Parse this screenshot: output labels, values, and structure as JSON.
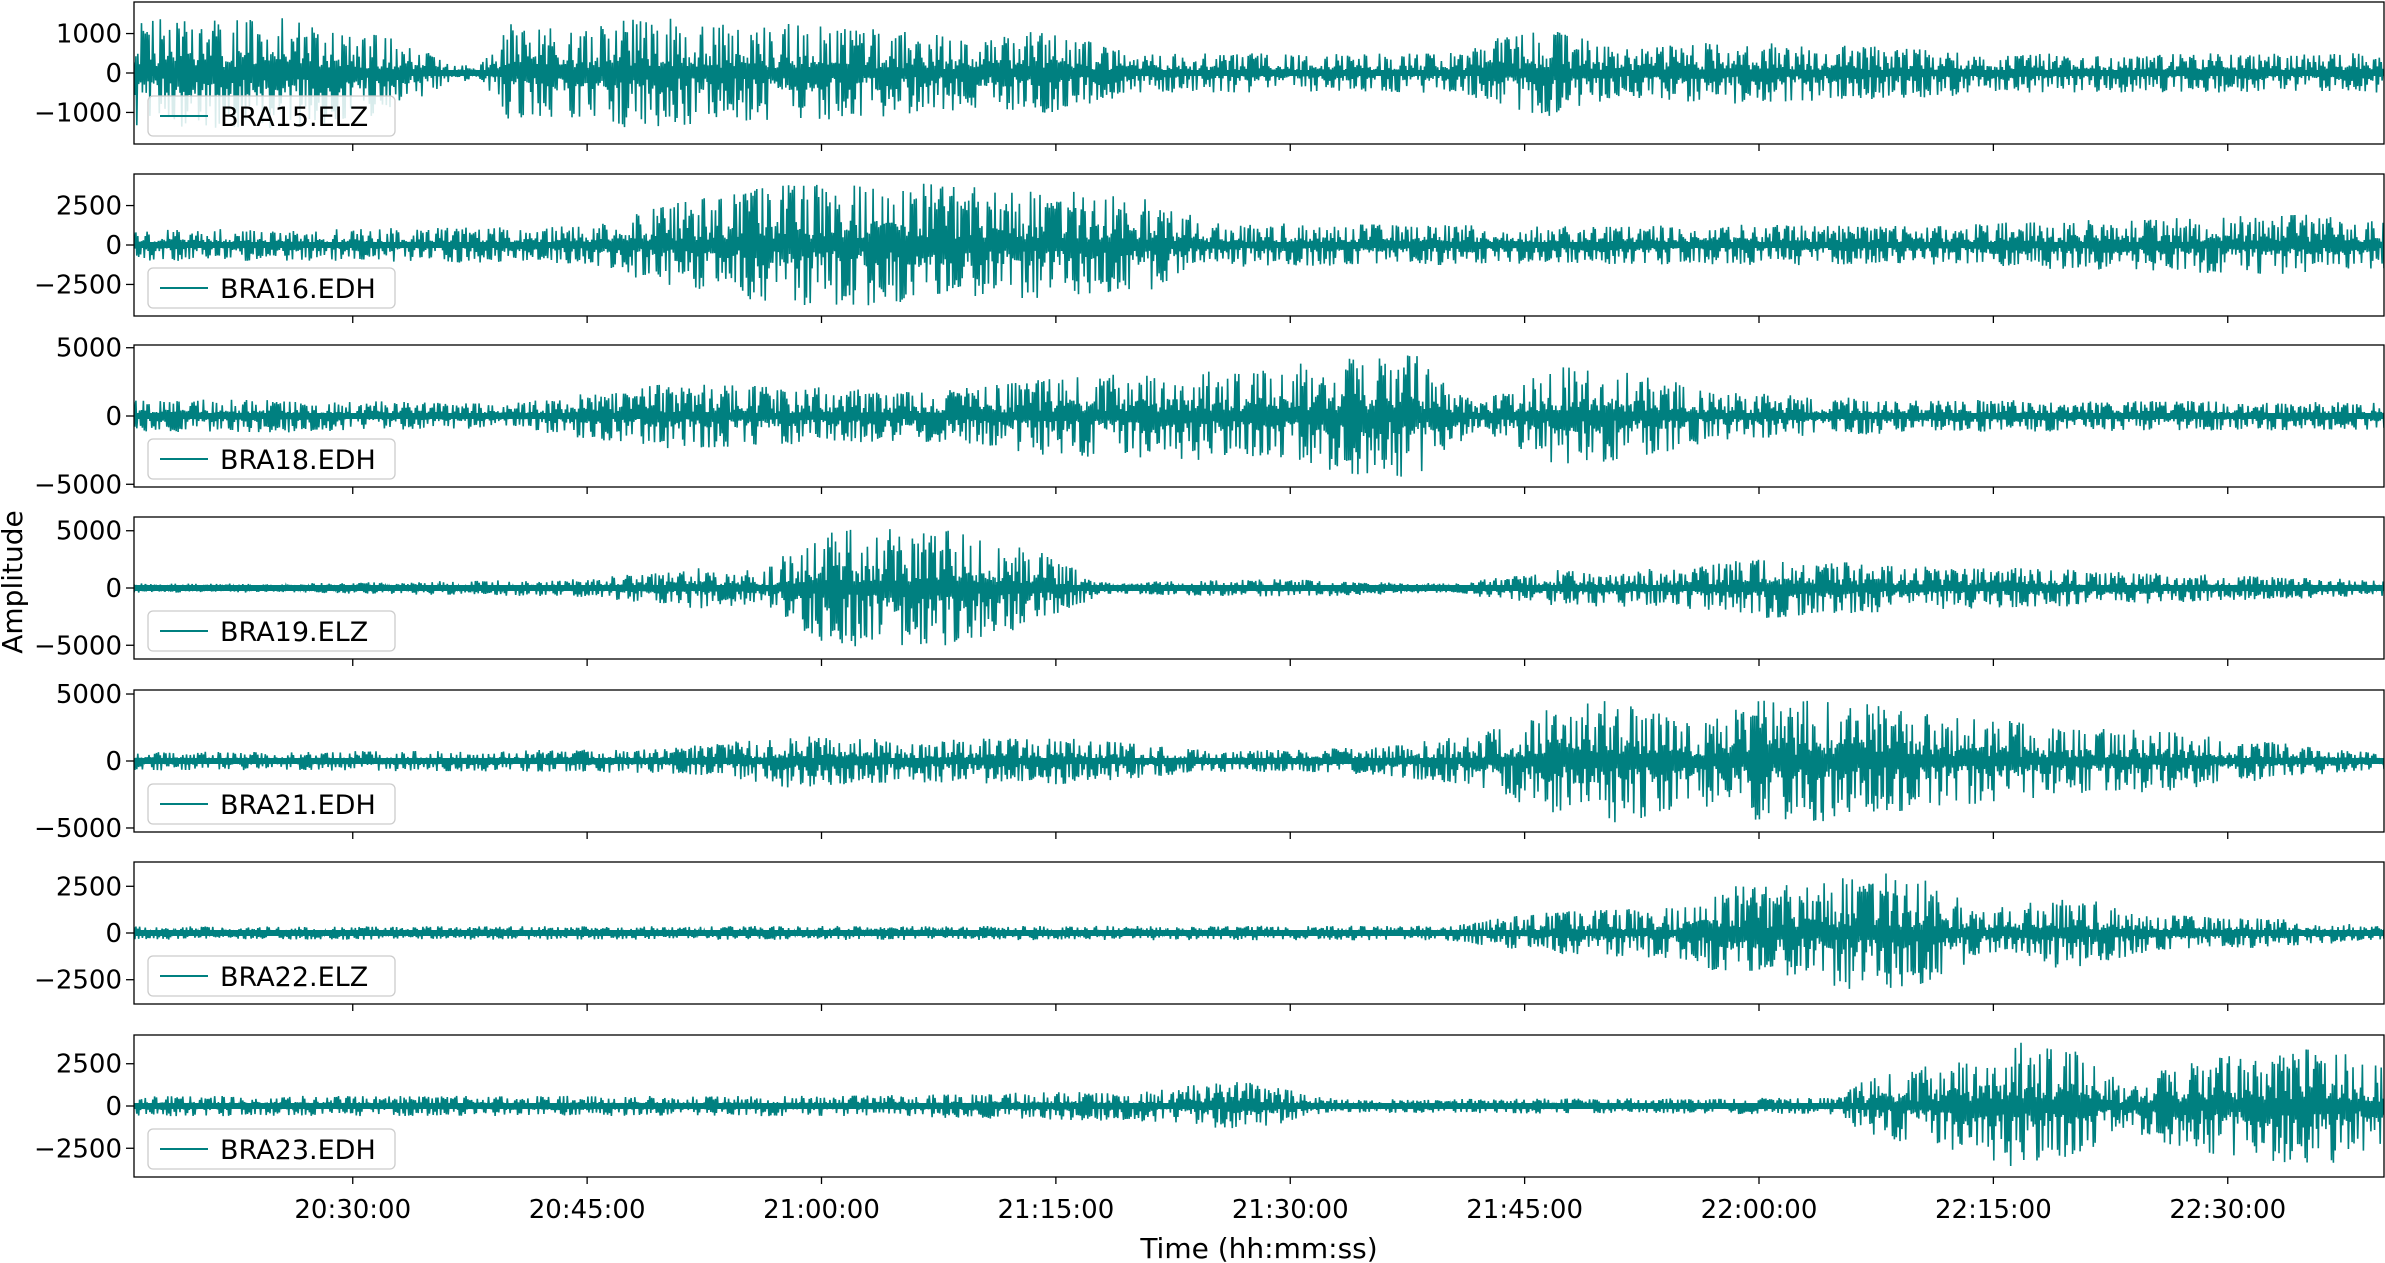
{
  "figure": {
    "ylabel": "Amplitude",
    "xlabel": "Time (hh:mm:ss)"
  },
  "colors": {
    "trace": "#008080",
    "axes": "#000000",
    "background": "#ffffff"
  },
  "chart_data": [
    {
      "type": "line",
      "legend": "BRA15.ELZ",
      "legend_position": "bottom-left",
      "ylim": [
        -1800,
        1800
      ],
      "yticks": [
        1000,
        0,
        -1000
      ],
      "ytick_labels": [
        "1000",
        "0",
        "−1000"
      ],
      "peak_amplitude": 1500,
      "envelope": [
        {
          "t": "20:26:00",
          "amp": 1400
        },
        {
          "t": "20:30:30",
          "amp": 1200
        },
        {
          "t": "20:38:00",
          "amp": 100
        },
        {
          "t": "20:40:00",
          "amp": 1300
        },
        {
          "t": "20:45:00",
          "amp": 1100
        },
        {
          "t": "20:48:00",
          "amp": 1500
        },
        {
          "t": "20:55:00",
          "amp": 1200
        },
        {
          "t": "20:58:00",
          "amp": 1300
        },
        {
          "t": "21:10:00",
          "amp": 900
        },
        {
          "t": "21:15:00",
          "amp": 1100
        },
        {
          "t": "21:20:00",
          "amp": 500
        },
        {
          "t": "21:40:00",
          "amp": 500
        },
        {
          "t": "21:46:00",
          "amp": 1200
        },
        {
          "t": "21:51:00",
          "amp": 600
        },
        {
          "t": "21:57:00",
          "amp": 800
        },
        {
          "t": "22:05:00",
          "amp": 700
        },
        {
          "t": "22:10:00",
          "amp": 650
        },
        {
          "t": "22:15:00",
          "amp": 500
        },
        {
          "t": "22:40:00",
          "amp": 500
        }
      ]
    },
    {
      "type": "line",
      "legend": "BRA16.EDH",
      "legend_position": "bottom-left",
      "ylim": [
        -4500,
        4500
      ],
      "yticks": [
        2500,
        0,
        -2500
      ],
      "ytick_labels": [
        "2500",
        "0",
        "−2500"
      ],
      "peak_amplitude": 4000,
      "envelope": [
        {
          "t": "20:26:00",
          "amp": 1000
        },
        {
          "t": "20:45:00",
          "amp": 1200
        },
        {
          "t": "20:50:00",
          "amp": 2600
        },
        {
          "t": "20:55:00",
          "amp": 3400
        },
        {
          "t": "20:57:00",
          "amp": 3800
        },
        {
          "t": "21:03:00",
          "amp": 3900
        },
        {
          "t": "21:07:00",
          "amp": 3900
        },
        {
          "t": "21:12:00",
          "amp": 3500
        },
        {
          "t": "21:20:00",
          "amp": 3300
        },
        {
          "t": "21:25:00",
          "amp": 1400
        },
        {
          "t": "21:50:00",
          "amp": 1200
        },
        {
          "t": "22:00:00",
          "amp": 1300
        },
        {
          "t": "22:10:00",
          "amp": 1200
        },
        {
          "t": "22:20:00",
          "amp": 1600
        },
        {
          "t": "22:30:00",
          "amp": 1800
        },
        {
          "t": "22:35:00",
          "amp": 2000
        },
        {
          "t": "22:40:00",
          "amp": 1500
        }
      ]
    },
    {
      "type": "line",
      "legend": "BRA18.EDH",
      "legend_position": "bottom-left",
      "ylim": [
        -5200,
        5200
      ],
      "yticks": [
        5000,
        0,
        -5000
      ],
      "ytick_labels": [
        "5000",
        "0",
        "−5000"
      ],
      "peak_amplitude": 4800,
      "envelope": [
        {
          "t": "20:26:00",
          "amp": 1200
        },
        {
          "t": "20:40:00",
          "amp": 900
        },
        {
          "t": "20:45:00",
          "amp": 1700
        },
        {
          "t": "20:50:00",
          "amp": 2400
        },
        {
          "t": "21:00:00",
          "amp": 2100
        },
        {
          "t": "21:08:00",
          "amp": 1900
        },
        {
          "t": "21:15:00",
          "amp": 3000
        },
        {
          "t": "21:22:00",
          "amp": 3200
        },
        {
          "t": "21:27:00",
          "amp": 3300
        },
        {
          "t": "21:33:00",
          "amp": 4200
        },
        {
          "t": "21:38:00",
          "amp": 4500
        },
        {
          "t": "21:42:00",
          "amp": 900
        },
        {
          "t": "21:47:00",
          "amp": 3800
        },
        {
          "t": "21:53:00",
          "amp": 3000
        },
        {
          "t": "21:57:00",
          "amp": 1800
        },
        {
          "t": "22:10:00",
          "amp": 1200
        },
        {
          "t": "22:40:00",
          "amp": 1000
        }
      ]
    },
    {
      "type": "line",
      "legend": "BRA19.ELZ",
      "legend_position": "bottom-left",
      "ylim": [
        -6200,
        6200
      ],
      "yticks": [
        5000,
        0,
        -5000
      ],
      "ytick_labels": [
        "5000",
        "0",
        "−5000"
      ],
      "peak_amplitude": 5600,
      "envelope": [
        {
          "t": "20:26:00",
          "amp": 400
        },
        {
          "t": "20:45:00",
          "amp": 800
        },
        {
          "t": "20:52:00",
          "amp": 1800
        },
        {
          "t": "20:56:00",
          "amp": 1500
        },
        {
          "t": "21:00:00",
          "amp": 5000
        },
        {
          "t": "21:05:00",
          "amp": 5400
        },
        {
          "t": "21:09:00",
          "amp": 5000
        },
        {
          "t": "21:14:00",
          "amp": 3200
        },
        {
          "t": "21:18:00",
          "amp": 500
        },
        {
          "t": "21:30:00",
          "amp": 800
        },
        {
          "t": "21:40:00",
          "amp": 400
        },
        {
          "t": "21:47:00",
          "amp": 1600
        },
        {
          "t": "21:55:00",
          "amp": 1700
        },
        {
          "t": "22:00:00",
          "amp": 2700
        },
        {
          "t": "22:05:00",
          "amp": 2300
        },
        {
          "t": "22:10:00",
          "amp": 2000
        },
        {
          "t": "22:20:00",
          "amp": 1600
        },
        {
          "t": "22:30:00",
          "amp": 1100
        },
        {
          "t": "22:40:00",
          "amp": 700
        }
      ]
    },
    {
      "type": "line",
      "legend": "BRA21.EDH",
      "legend_position": "bottom-left",
      "ylim": [
        -5300,
        5300
      ],
      "yticks": [
        5000,
        0,
        -5000
      ],
      "ytick_labels": [
        "5000",
        "0",
        "−5000"
      ],
      "peak_amplitude": 4800,
      "envelope": [
        {
          "t": "20:26:00",
          "amp": 700
        },
        {
          "t": "20:50:00",
          "amp": 900
        },
        {
          "t": "20:58:00",
          "amp": 2000
        },
        {
          "t": "21:05:00",
          "amp": 1600
        },
        {
          "t": "21:15:00",
          "amp": 1800
        },
        {
          "t": "21:25:00",
          "amp": 800
        },
        {
          "t": "21:35:00",
          "amp": 1000
        },
        {
          "t": "21:42:00",
          "amp": 2000
        },
        {
          "t": "21:47:00",
          "amp": 4200
        },
        {
          "t": "21:52:00",
          "amp": 4700
        },
        {
          "t": "21:56:00",
          "amp": 3200
        },
        {
          "t": "22:00:00",
          "amp": 4500
        },
        {
          "t": "22:06:00",
          "amp": 4500
        },
        {
          "t": "22:09:00",
          "amp": 3800
        },
        {
          "t": "22:15:00",
          "amp": 3200
        },
        {
          "t": "22:20:00",
          "amp": 2400
        },
        {
          "t": "22:25:00",
          "amp": 2400
        },
        {
          "t": "22:32:00",
          "amp": 1500
        },
        {
          "t": "22:40:00",
          "amp": 600
        }
      ]
    },
    {
      "type": "line",
      "legend": "BRA22.ELZ",
      "legend_position": "bottom-left",
      "ylim": [
        -3800,
        3800
      ],
      "yticks": [
        2500,
        0,
        -2500
      ],
      "ytick_labels": [
        "2500",
        "0",
        "−2500"
      ],
      "peak_amplitude": 3400,
      "envelope": [
        {
          "t": "20:26:00",
          "amp": 350
        },
        {
          "t": "21:40:00",
          "amp": 400
        },
        {
          "t": "21:46:00",
          "amp": 1100
        },
        {
          "t": "21:55:00",
          "amp": 1400
        },
        {
          "t": "21:58:00",
          "amp": 2500
        },
        {
          "t": "22:03:00",
          "amp": 2600
        },
        {
          "t": "22:07:00",
          "amp": 3300
        },
        {
          "t": "22:11:00",
          "amp": 3000
        },
        {
          "t": "22:14:00",
          "amp": 1200
        },
        {
          "t": "22:20:00",
          "amp": 2000
        },
        {
          "t": "22:25:00",
          "amp": 1000
        },
        {
          "t": "22:35:00",
          "amp": 700
        },
        {
          "t": "22:40:00",
          "amp": 350
        }
      ]
    },
    {
      "type": "line",
      "legend": "BRA23.EDH",
      "legend_position": "bottom-left",
      "ylim": [
        -4200,
        4200
      ],
      "yticks": [
        2500,
        0,
        -2500
      ],
      "ytick_labels": [
        "2500",
        "0",
        "−2500"
      ],
      "peak_amplitude": 3900,
      "envelope": [
        {
          "t": "20:26:00",
          "amp": 600
        },
        {
          "t": "21:00:00",
          "amp": 600
        },
        {
          "t": "21:20:00",
          "amp": 900
        },
        {
          "t": "21:27:00",
          "amp": 1500
        },
        {
          "t": "21:33:00",
          "amp": 400
        },
        {
          "t": "22:05:00",
          "amp": 500
        },
        {
          "t": "22:07:00",
          "amp": 1800
        },
        {
          "t": "22:13:00",
          "amp": 2800
        },
        {
          "t": "22:17:00",
          "amp": 3800
        },
        {
          "t": "22:21:00",
          "amp": 3300
        },
        {
          "t": "22:23:00",
          "amp": 1400
        },
        {
          "t": "22:28:00",
          "amp": 2700
        },
        {
          "t": "22:33:00",
          "amp": 3300
        },
        {
          "t": "22:37:00",
          "amp": 3500
        },
        {
          "t": "22:40:00",
          "amp": 2300
        }
      ]
    }
  ],
  "xaxis": {
    "range": [
      "20:16:00",
      "22:40:00"
    ],
    "ticks": [
      "20:30:00",
      "20:45:00",
      "21:00:00",
      "21:15:00",
      "21:30:00",
      "21:45:00",
      "22:00:00",
      "22:15:00",
      "22:30:00"
    ]
  }
}
